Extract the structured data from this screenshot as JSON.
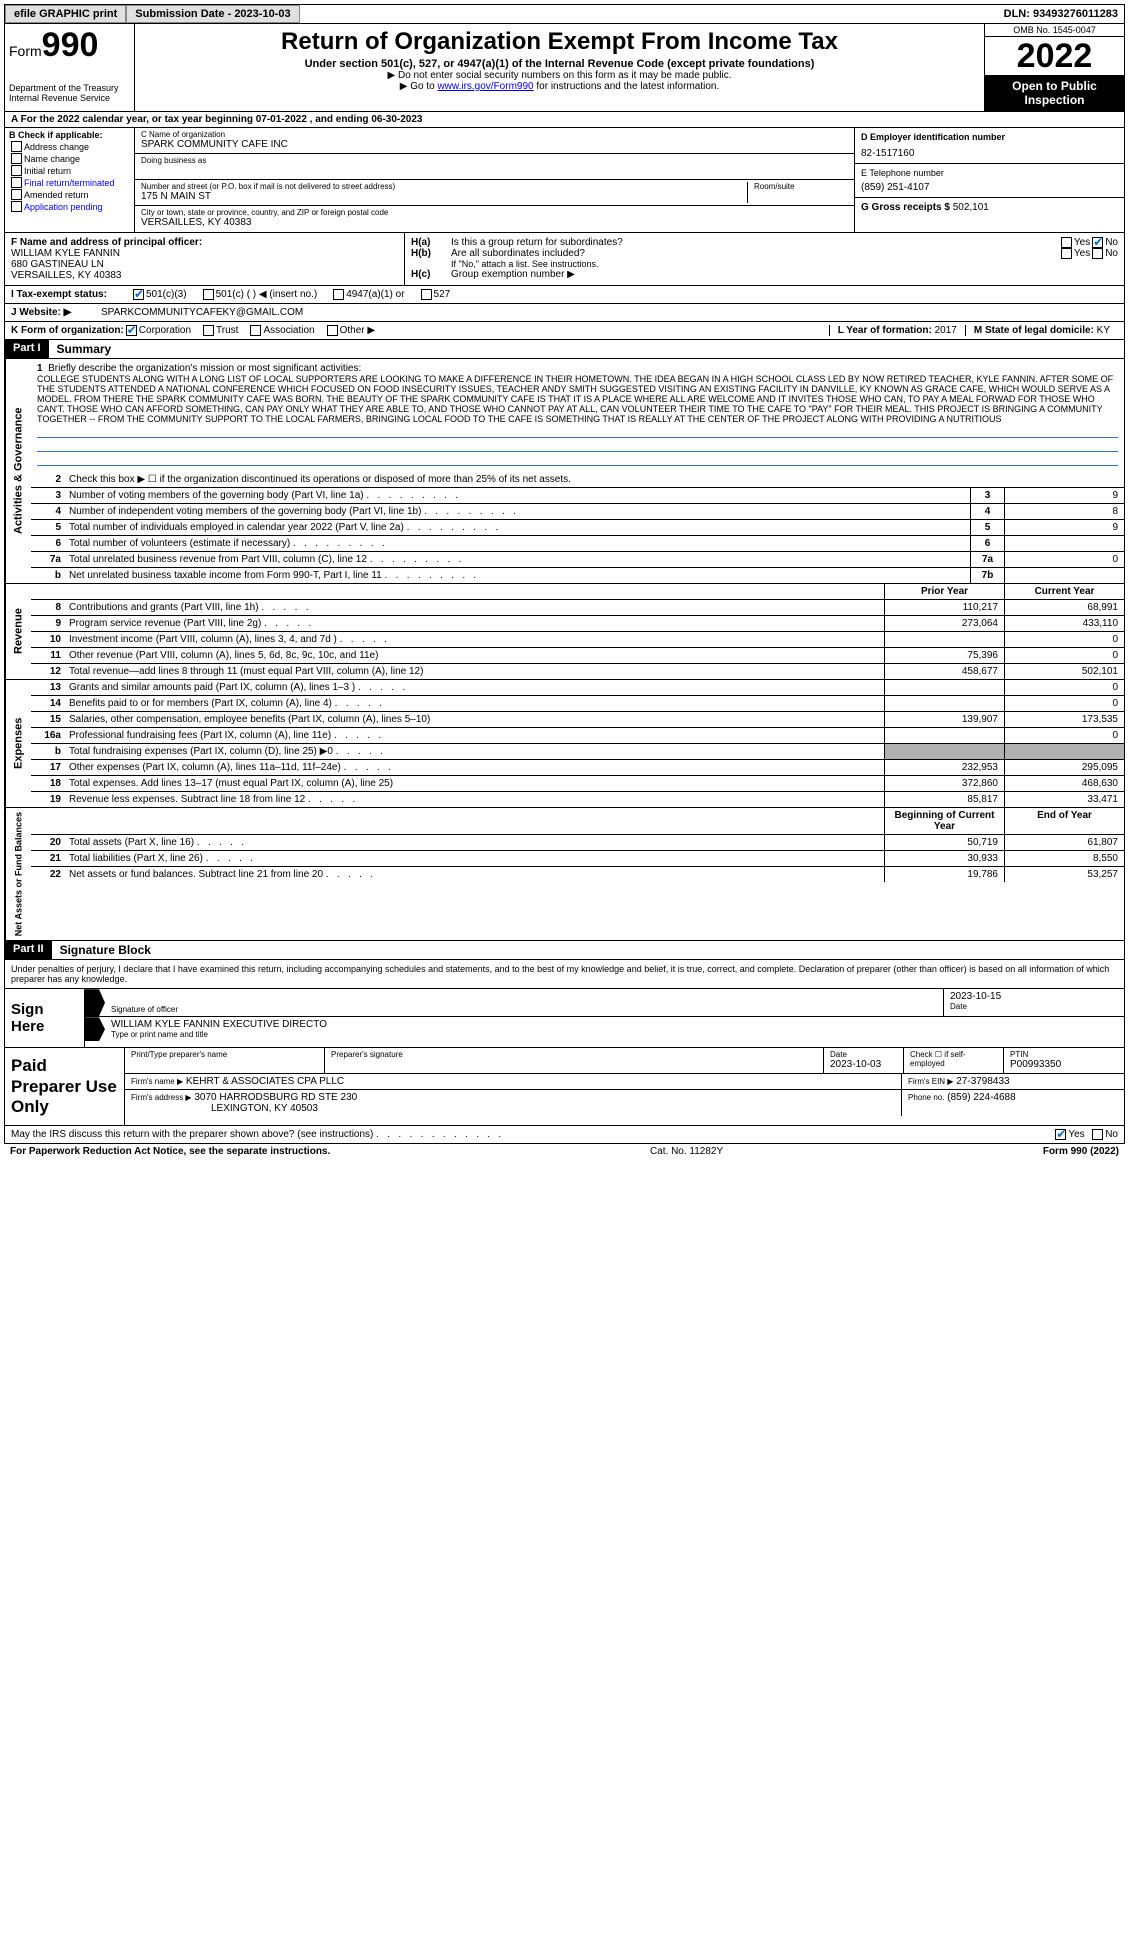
{
  "topbar": {
    "efile": "efile GRAPHIC print",
    "submission_label": "Submission Date - 2023-10-03",
    "dln": "DLN: 93493276011283"
  },
  "header": {
    "form_prefix": "Form",
    "form_number": "990",
    "dept": "Department of the Treasury",
    "irs": "Internal Revenue Service",
    "title": "Return of Organization Exempt From Income Tax",
    "subtitle": "Under section 501(c), 527, or 4947(a)(1) of the Internal Revenue Code (except private foundations)",
    "note1": "▶ Do not enter social security numbers on this form as it may be made public.",
    "note2_pre": "▶ Go to ",
    "note2_link": "www.irs.gov/Form990",
    "note2_post": " for instructions and the latest information.",
    "omb": "OMB No. 1545-0047",
    "year": "2022",
    "open": "Open to Public Inspection"
  },
  "line_a": "A For the 2022 calendar year, or tax year beginning 07-01-2022   , and ending 06-30-2023",
  "box_b": {
    "header": "B Check if applicable:",
    "items": [
      "Address change",
      "Name change",
      "Initial return",
      "Final return/terminated",
      "Amended return",
      "Application pending"
    ]
  },
  "box_c": {
    "name_lbl": "C Name of organization",
    "name": "SPARK COMMUNITY CAFE INC",
    "dba_lbl": "Doing business as",
    "dba": "",
    "addr_lbl": "Number and street (or P.O. box if mail is not delivered to street address)",
    "addr": "175 N MAIN ST",
    "room_lbl": "Room/suite",
    "city_lbl": "City or town, state or province, country, and ZIP or foreign postal code",
    "city": "VERSAILLES, KY  40383"
  },
  "box_d": {
    "ein_lbl": "D Employer identification number",
    "ein": "82-1517160",
    "phone_lbl": "E Telephone number",
    "phone": "(859) 251-4107",
    "gross_lbl": "G Gross receipts $",
    "gross": "502,101"
  },
  "box_f": {
    "lbl": "F  Name and address of principal officer:",
    "name": "WILLIAM KYLE FANNIN",
    "addr1": "680 GASTINEAU LN",
    "addr2": "VERSAILLES, KY  40383"
  },
  "box_h": {
    "a_lbl": "Is this a group return for subordinates?",
    "a_prefix": "H(a)",
    "b_lbl": "Are all subordinates included?",
    "b_prefix": "H(b)",
    "b_note": "If \"No,\" attach a list. See instructions.",
    "c_prefix": "H(c)",
    "c_lbl": "Group exemption number ▶",
    "yes": "Yes",
    "no": "No"
  },
  "line_i": {
    "lbl": "I   Tax-exempt status:",
    "opts": [
      "501(c)(3)",
      "501(c) (  ) ◀ (insert no.)",
      "4947(a)(1) or",
      "527"
    ]
  },
  "line_j": {
    "lbl": "J   Website: ▶",
    "val": "SPARKCOMMUNITYCAFEKY@GMAIL.COM"
  },
  "line_k": {
    "lbl": "K Form of organization:",
    "opts": [
      "Corporation",
      "Trust",
      "Association",
      "Other ▶"
    ],
    "year_lbl": "L Year of formation:",
    "year": "2017",
    "state_lbl": "M State of legal domicile:",
    "state": "KY"
  },
  "part1": {
    "hdr": "Part I",
    "title": "Summary",
    "line1_lbl": "Briefly describe the organization's mission or most significant activities:",
    "mission": "COLLEGE STUDENTS ALONG WITH A LONG LIST OF LOCAL SUPPORTERS ARE LOOKING TO MAKE A DIFFERENCE IN THEIR HOMETOWN. THE IDEA BEGAN IN A HIGH SCHOOL CLASS LED BY NOW RETIRED TEACHER, KYLE FANNIN. AFTER SOME OF THE STUDENTS ATTENDED A NATIONAL CONFERENCE WHICH FOCUSED ON FOOD INSECURITY ISSUES, TEACHER ANDY SMITH SUGGESTED VISITING AN EXISTING FACILITY IN DANVILLE, KY KNOWN AS GRACE CAFE, WHICH WOULD SERVE AS A MODEL. FROM THERE THE SPARK COMMUNITY CAFE WAS BORN. THE BEAUTY OF THE SPARK COMMUNITY CAFE IS THAT IT IS A PLACE WHERE ALL ARE WELCOME AND IT INVITES THOSE WHO CAN, TO PAY A MEAL FORWAD FOR THOSE WHO CAN'T. THOSE WHO CAN AFFORD SOMETHING, CAN PAY ONLY WHAT THEY ARE ABLE TO, AND THOSE WHO CANNOT PAY AT ALL, CAN VOLUNTEER THEIR TIME TO THE CAFE TO \"PAY\" FOR THEIR MEAL. THIS PROJECT IS BRINGING A COMMUNITY TOGETHER -- FROM THE COMMUNITY SUPPORT TO THE LOCAL FARMERS, BRINGING LOCAL FOOD TO THE CAFE IS SOMETHING THAT IS REALLY AT THE CENTER OF THE PROJECT ALONG WITH PROVIDING A NUTRITIOUS",
    "line2": "Check this box ▶ ☐ if the organization discontinued its operations or disposed of more than 25% of its net assets.",
    "rows_single": [
      {
        "n": "3",
        "d": "Number of voting members of the governing body (Part VI, line 1a)",
        "box": "3",
        "v": "9"
      },
      {
        "n": "4",
        "d": "Number of independent voting members of the governing body (Part VI, line 1b)",
        "box": "4",
        "v": "8"
      },
      {
        "n": "5",
        "d": "Total number of individuals employed in calendar year 2022 (Part V, line 2a)",
        "box": "5",
        "v": "9"
      },
      {
        "n": "6",
        "d": "Total number of volunteers (estimate if necessary)",
        "box": "6",
        "v": ""
      },
      {
        "n": "7a",
        "d": "Total unrelated business revenue from Part VIII, column (C), line 12",
        "box": "7a",
        "v": "0"
      },
      {
        "n": "b",
        "d": "Net unrelated business taxable income from Form 990-T, Part I, line 11",
        "box": "7b",
        "v": ""
      }
    ],
    "col_hdrs": {
      "prior": "Prior Year",
      "current": "Current Year",
      "begin": "Beginning of Current Year",
      "end": "End of Year"
    },
    "revenue": [
      {
        "n": "8",
        "d": "Contributions and grants (Part VIII, line 1h)",
        "p": "110,217",
        "c": "68,991"
      },
      {
        "n": "9",
        "d": "Program service revenue (Part VIII, line 2g)",
        "p": "273,064",
        "c": "433,110"
      },
      {
        "n": "10",
        "d": "Investment income (Part VIII, column (A), lines 3, 4, and 7d )",
        "p": "",
        "c": "0"
      },
      {
        "n": "11",
        "d": "Other revenue (Part VIII, column (A), lines 5, 6d, 8c, 9c, 10c, and 11e)",
        "p": "75,396",
        "c": "0"
      },
      {
        "n": "12",
        "d": "Total revenue—add lines 8 through 11 (must equal Part VIII, column (A), line 12)",
        "p": "458,677",
        "c": "502,101"
      }
    ],
    "expenses": [
      {
        "n": "13",
        "d": "Grants and similar amounts paid (Part IX, column (A), lines 1–3 )",
        "p": "",
        "c": "0"
      },
      {
        "n": "14",
        "d": "Benefits paid to or for members (Part IX, column (A), line 4)",
        "p": "",
        "c": "0"
      },
      {
        "n": "15",
        "d": "Salaries, other compensation, employee benefits (Part IX, column (A), lines 5–10)",
        "p": "139,907",
        "c": "173,535"
      },
      {
        "n": "16a",
        "d": "Professional fundraising fees (Part IX, column (A), line 11e)",
        "p": "",
        "c": "0"
      },
      {
        "n": "b",
        "d": "Total fundraising expenses (Part IX, column (D), line 25) ▶0",
        "p": "SHADE",
        "c": "SHADE"
      },
      {
        "n": "17",
        "d": "Other expenses (Part IX, column (A), lines 11a–11d, 11f–24e)",
        "p": "232,953",
        "c": "295,095"
      },
      {
        "n": "18",
        "d": "Total expenses. Add lines 13–17 (must equal Part IX, column (A), line 25)",
        "p": "372,860",
        "c": "468,630"
      },
      {
        "n": "19",
        "d": "Revenue less expenses. Subtract line 18 from line 12",
        "p": "85,817",
        "c": "33,471"
      }
    ],
    "netassets": [
      {
        "n": "20",
        "d": "Total assets (Part X, line 16)",
        "p": "50,719",
        "c": "61,807"
      },
      {
        "n": "21",
        "d": "Total liabilities (Part X, line 26)",
        "p": "30,933",
        "c": "8,550"
      },
      {
        "n": "22",
        "d": "Net assets or fund balances. Subtract line 21 from line 20",
        "p": "19,786",
        "c": "53,257"
      }
    ],
    "tabs": {
      "gov": "Activities & Governance",
      "rev": "Revenue",
      "exp": "Expenses",
      "net": "Net Assets or Fund Balances"
    }
  },
  "part2": {
    "hdr": "Part II",
    "title": "Signature Block",
    "intro": "Under penalties of perjury, I declare that I have examined this return, including accompanying schedules and statements, and to the best of my knowledge and belief, it is true, correct, and complete. Declaration of preparer (other than officer) is based on all information of which preparer has any knowledge.",
    "sign_here": "Sign Here",
    "sig_lbl": "Signature of officer",
    "date_lbl": "Date",
    "sig_date": "2023-10-15",
    "name_lbl": "Type or print name and title",
    "officer": "WILLIAM KYLE FANNIN  EXECUTIVE DIRECTO",
    "paid": "Paid Preparer Use Only",
    "prep_name_lbl": "Print/Type preparer's name",
    "prep_sig_lbl": "Preparer's signature",
    "prep_date_lbl": "Date",
    "prep_date": "2023-10-03",
    "self_emp": "Check ☐ if self-employed",
    "ptin_lbl": "PTIN",
    "ptin": "P00993350",
    "firm_name_lbl": "Firm's name    ▶",
    "firm_name": "KEHRT & ASSOCIATES CPA PLLC",
    "firm_ein_lbl": "Firm's EIN ▶",
    "firm_ein": "27-3798433",
    "firm_addr_lbl": "Firm's address ▶",
    "firm_addr1": "3070 HARRODSBURG RD STE 230",
    "firm_addr2": "LEXINGTON, KY  40503",
    "firm_phone_lbl": "Phone no.",
    "firm_phone": "(859) 224-4688",
    "discuss": "May the IRS discuss this return with the preparer shown above? (see instructions)"
  },
  "footer": {
    "left": "For Paperwork Reduction Act Notice, see the separate instructions.",
    "mid": "Cat. No. 11282Y",
    "right": "Form 990 (2022)"
  }
}
